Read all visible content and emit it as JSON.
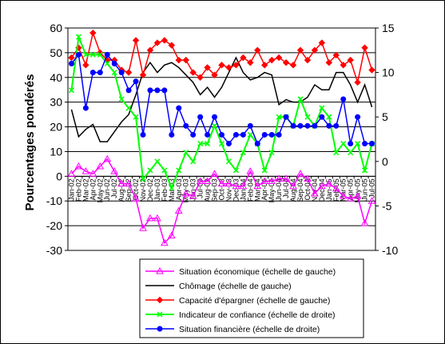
{
  "chart_data": {
    "type": "line",
    "title": "",
    "xlabel": "",
    "ylabel": "Pourcentages pondérés",
    "ylim": [
      -30,
      60
    ],
    "y2lim": [
      -10,
      15
    ],
    "yticks": [
      -30,
      -20,
      -10,
      0,
      10,
      20,
      30,
      40,
      50,
      60
    ],
    "y2ticks": [
      -10,
      -5,
      0,
      5,
      10,
      15
    ],
    "grid": "horizontal",
    "legend_position": "bottom",
    "x": [
      "Jan-02",
      "Feb-02",
      "Mar-02",
      "Apr-02",
      "May-02",
      "Jun-02",
      "Jul-02",
      "Aug-02",
      "Sep-02",
      "Oct-02",
      "Nov-02",
      "Dec-02",
      "Jan-03",
      "Feb-03",
      "Mar-03",
      "Apr-03",
      "May-03",
      "Jun-03",
      "Jul-03",
      "Aug-03",
      "Sep-03",
      "Oct-03",
      "Nov-03",
      "Dec-03",
      "Jan-04",
      "Feb-04",
      "Mar-04",
      "Apr-04",
      "May-04",
      "Jun-04",
      "Jul-04",
      "Aug-04",
      "Sep-04",
      "Oct-04",
      "Nov-04",
      "Dec-04",
      "Jan-05",
      "Feb-05",
      "Mar-05",
      "Apr-05",
      "May-05",
      "Jun-05",
      "Jul-05"
    ],
    "x_tick_labels": [
      "Jan-02",
      "Feb-02",
      "Mar-02",
      "Apr-02",
      "May-02",
      "Jun-02",
      "Jul-02",
      "Aug-02",
      "Sep-02",
      "Oct-02",
      "Nov-02",
      "Dec-02",
      "Jan-03",
      "Feb-03",
      "Mar-03",
      "Apr-03",
      "May-03",
      "Jun-03",
      "Jul-03",
      "Aug-03",
      "Sep-03",
      "Oct-03",
      "Nov-03",
      "Dec-03",
      "Jan-04",
      "Feb-04",
      "Mar-04",
      "Apr-04",
      "May-04",
      "Jun-04",
      "Jul-04",
      "Aug-04",
      "Sep-04",
      "Oct-04",
      "Nov-04",
      "Dec-04",
      "Jan-05",
      "Feb-05",
      "Mar-05",
      "Apr-05",
      "May-05",
      "Jun-05",
      "Jul-05"
    ],
    "series": [
      {
        "name": "Situation économique (échelle de gauche)",
        "axis": "left",
        "color": "#ff00ff",
        "marker": "triangle-open",
        "values": [
          1,
          4,
          2,
          1,
          4,
          7,
          2,
          -3,
          -3,
          -9,
          -21,
          -17,
          -17,
          -27,
          -24,
          -14,
          -7,
          -8,
          -2,
          -2,
          1,
          -3,
          -3,
          -4,
          -4,
          2,
          -4,
          -2,
          -2,
          -1,
          -1,
          -4,
          1,
          -1,
          -7,
          -4,
          -3,
          -5,
          -8,
          -9,
          -8,
          -19,
          -10
        ]
      },
      {
        "name": "Chômage (échelle de gauche)",
        "axis": "left",
        "color": "#000000",
        "marker": "none",
        "values": [
          27,
          16,
          19,
          21,
          14,
          14,
          18,
          22,
          25,
          33,
          42,
          46,
          42,
          45,
          46,
          44,
          41,
          38,
          33,
          36,
          32,
          36,
          42,
          48,
          42,
          39,
          40,
          42,
          41,
          29,
          31,
          30,
          30,
          32,
          37,
          35,
          35,
          42,
          42,
          37,
          30,
          37,
          28
        ]
      },
      {
        "name": "Capacité d'épargner (échelle de gauche)",
        "axis": "left",
        "color": "#ff0000",
        "marker": "diamond",
        "values": [
          48,
          52,
          45,
          58,
          50,
          47,
          47,
          43,
          42,
          55,
          41,
          51,
          54,
          55,
          53,
          47,
          47,
          42,
          40,
          44,
          41,
          45,
          44,
          45,
          48,
          46,
          51,
          45,
          47,
          48,
          46,
          45,
          51,
          47,
          51,
          54,
          46,
          49,
          45,
          47,
          38,
          52,
          43
        ]
      },
      {
        "name": "Indicateur de confiance (échelle de droite)",
        "axis": "right",
        "color": "#00ff00",
        "marker": "x",
        "values": [
          8,
          14,
          12,
          12,
          12,
          11,
          10,
          7,
          6,
          5,
          -2,
          -1,
          0,
          -1,
          -3,
          -1,
          1,
          0,
          2,
          2,
          4,
          2,
          0,
          -1,
          1,
          3,
          2,
          -1,
          1,
          5,
          5,
          4,
          7,
          5,
          4,
          6,
          5,
          1,
          2,
          1,
          2,
          -1,
          2
        ]
      },
      {
        "name": "Situation financière (échelle de droite)",
        "axis": "right",
        "color": "#0000ff",
        "marker": "circle",
        "values": [
          11,
          12,
          6,
          10,
          10,
          12,
          11,
          10,
          8,
          9,
          3,
          8,
          8,
          8,
          3,
          6,
          4,
          3,
          5,
          3,
          5,
          3,
          2,
          3,
          3,
          4,
          2,
          3,
          3,
          3,
          5,
          4,
          4,
          4,
          4,
          5,
          4,
          4,
          7,
          2,
          5,
          2,
          2
        ]
      }
    ]
  }
}
